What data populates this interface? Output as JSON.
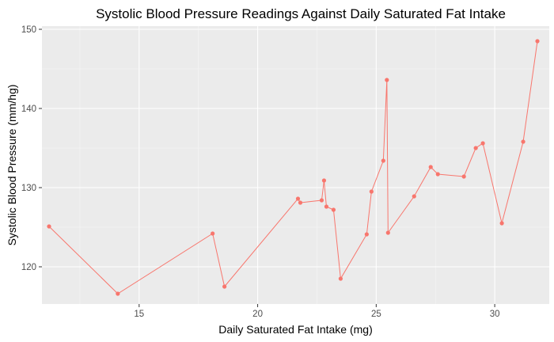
{
  "chart_data": {
    "type": "line",
    "title": "Systolic Blood Pressure Readings Against Daily Saturated Fat Intake",
    "xlabel": "Daily Saturated Fat Intake (mg)",
    "ylabel": "Systolic Blood Pressure (mm/hg)",
    "xlim": [
      10.9,
      32.3
    ],
    "ylim": [
      115.3,
      150.4
    ],
    "x_ticks": [
      15,
      20,
      25,
      30
    ],
    "y_ticks": [
      120,
      130,
      140,
      150
    ],
    "grid": true,
    "legend": "none",
    "colors": {
      "series": "#F8766D",
      "panel": "#EBEBEB"
    },
    "series": [
      {
        "points": [
          [
            11.2,
            125.1
          ],
          [
            14.1,
            116.6
          ],
          [
            18.1,
            124.2
          ],
          [
            18.6,
            117.5
          ],
          [
            21.7,
            128.6
          ],
          [
            21.8,
            128.1
          ],
          [
            22.7,
            128.4
          ],
          [
            22.8,
            130.9
          ],
          [
            22.9,
            127.6
          ],
          [
            23.2,
            127.2
          ],
          [
            23.5,
            118.5
          ],
          [
            24.6,
            124.1
          ],
          [
            24.8,
            129.5
          ],
          [
            25.3,
            133.4
          ],
          [
            25.45,
            143.6
          ],
          [
            25.5,
            124.3
          ],
          [
            26.6,
            128.9
          ],
          [
            27.3,
            132.6
          ],
          [
            27.6,
            131.7
          ],
          [
            28.7,
            131.4
          ],
          [
            29.2,
            135.0
          ],
          [
            29.5,
            135.6
          ],
          [
            30.3,
            125.5
          ],
          [
            31.2,
            135.8
          ],
          [
            31.8,
            148.5
          ]
        ]
      }
    ]
  }
}
